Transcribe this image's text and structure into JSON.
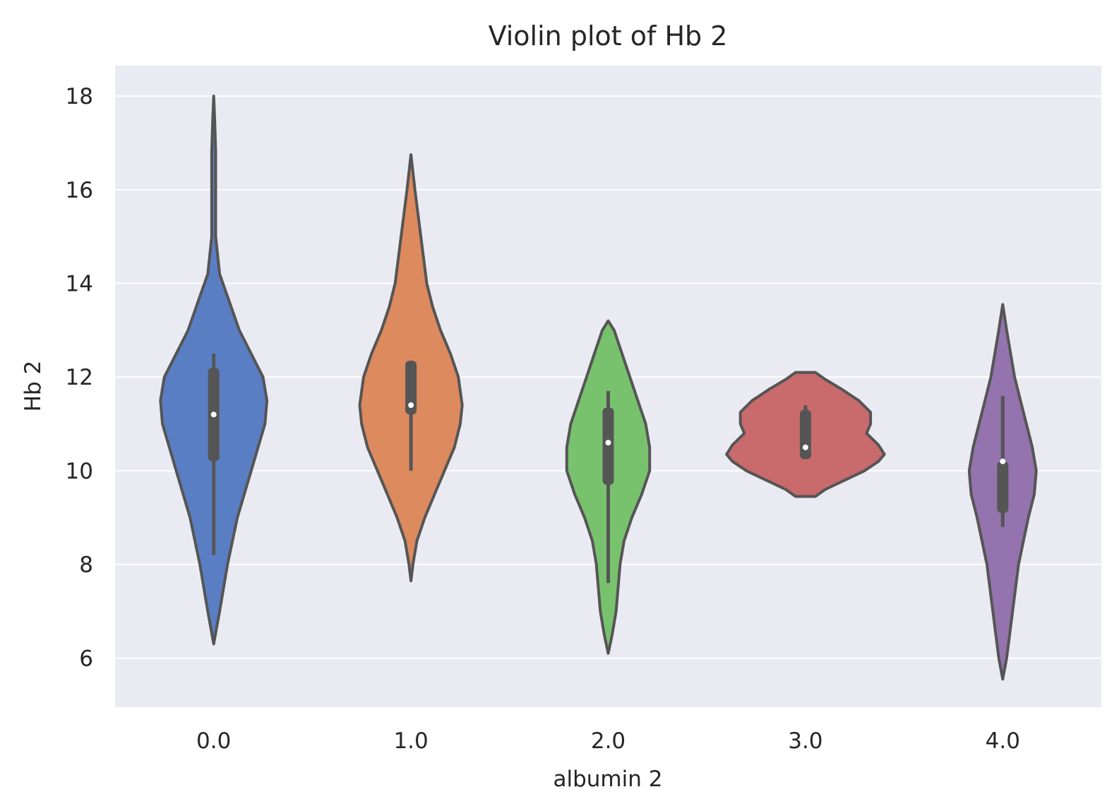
{
  "chart_data": {
    "type": "violin",
    "title": "Violin plot of Hb 2",
    "xlabel": "albumin 2",
    "ylabel": "Hb 2",
    "categories": [
      "0.0",
      "1.0",
      "2.0",
      "3.0",
      "4.0"
    ],
    "yticks": [
      "6",
      "8",
      "10",
      "12",
      "14",
      "16",
      "18"
    ],
    "ylim": [
      4.95,
      18.65
    ],
    "grid": true,
    "background": "#eaeaf2",
    "outline_color": "#555555",
    "violins": [
      {
        "category": "0.0",
        "color": "#5a7ec4",
        "min": 6.3,
        "max": 18.0,
        "median": 11.2,
        "q1": 10.2,
        "q3": 12.2,
        "whisker_low": 8.2,
        "whisker_high": 12.5,
        "profile": [
          [
            6.3,
            0.0
          ],
          [
            7.0,
            0.03
          ],
          [
            8.0,
            0.07
          ],
          [
            9.0,
            0.12
          ],
          [
            10.0,
            0.19
          ],
          [
            11.0,
            0.26
          ],
          [
            11.5,
            0.27
          ],
          [
            12.0,
            0.25
          ],
          [
            12.5,
            0.19
          ],
          [
            13.0,
            0.13
          ],
          [
            13.6,
            0.08
          ],
          [
            14.2,
            0.03
          ],
          [
            15.0,
            0.01
          ],
          [
            16.0,
            0.01
          ],
          [
            16.8,
            0.01
          ],
          [
            17.5,
            0.005
          ],
          [
            18.0,
            0.0
          ]
        ]
      },
      {
        "category": "1.0",
        "color": "#dd8a5e",
        "min": 7.65,
        "max": 16.75,
        "median": 11.4,
        "q1": 11.2,
        "q3": 12.35,
        "whisker_low": 10.0,
        "whisker_high": 12.35,
        "profile": [
          [
            7.65,
            0.0
          ],
          [
            8.0,
            0.01
          ],
          [
            8.5,
            0.03
          ],
          [
            9.0,
            0.07
          ],
          [
            9.5,
            0.12
          ],
          [
            10.0,
            0.17
          ],
          [
            10.5,
            0.22
          ],
          [
            11.0,
            0.25
          ],
          [
            11.4,
            0.26
          ],
          [
            12.0,
            0.24
          ],
          [
            12.5,
            0.2
          ],
          [
            13.0,
            0.15
          ],
          [
            13.5,
            0.11
          ],
          [
            14.0,
            0.08
          ],
          [
            15.0,
            0.05
          ],
          [
            16.0,
            0.02
          ],
          [
            16.75,
            0.0
          ]
        ]
      },
      {
        "category": "2.0",
        "color": "#78c26e",
        "min": 6.1,
        "max": 13.2,
        "median": 10.6,
        "q1": 9.7,
        "q3": 11.35,
        "whisker_low": 7.6,
        "whisker_high": 11.7,
        "profile": [
          [
            6.1,
            0.0
          ],
          [
            6.5,
            0.02
          ],
          [
            7.0,
            0.04
          ],
          [
            7.5,
            0.05
          ],
          [
            8.0,
            0.06
          ],
          [
            8.5,
            0.08
          ],
          [
            9.0,
            0.12
          ],
          [
            9.5,
            0.17
          ],
          [
            10.0,
            0.21
          ],
          [
            10.5,
            0.21
          ],
          [
            11.0,
            0.19
          ],
          [
            11.5,
            0.15
          ],
          [
            12.0,
            0.11
          ],
          [
            12.5,
            0.07
          ],
          [
            13.0,
            0.03
          ],
          [
            13.2,
            0.0
          ]
        ]
      },
      {
        "category": "3.0",
        "color": "#c96a6c",
        "min": 9.45,
        "max": 12.1,
        "median": 10.5,
        "q1": 10.25,
        "q3": 11.3,
        "whisker_low": 10.25,
        "whisker_high": 11.4,
        "profile": [
          [
            9.45,
            0.05
          ],
          [
            9.6,
            0.1
          ],
          [
            9.8,
            0.2
          ],
          [
            10.0,
            0.3
          ],
          [
            10.2,
            0.37
          ],
          [
            10.35,
            0.4
          ],
          [
            10.55,
            0.37
          ],
          [
            10.8,
            0.31
          ],
          [
            11.0,
            0.33
          ],
          [
            11.25,
            0.33
          ],
          [
            11.5,
            0.27
          ],
          [
            11.75,
            0.18
          ],
          [
            11.95,
            0.1
          ],
          [
            12.1,
            0.05
          ]
        ]
      },
      {
        "category": "4.0",
        "color": "#9473ae",
        "min": 5.55,
        "max": 13.55,
        "median": 10.2,
        "q1": 9.1,
        "q3": 10.2,
        "whisker_low": 8.8,
        "whisker_high": 11.6,
        "profile": [
          [
            5.55,
            0.0
          ],
          [
            6.0,
            0.02
          ],
          [
            7.0,
            0.05
          ],
          [
            8.0,
            0.08
          ],
          [
            9.0,
            0.13
          ],
          [
            9.5,
            0.16
          ],
          [
            10.0,
            0.17
          ],
          [
            10.5,
            0.15
          ],
          [
            11.0,
            0.12
          ],
          [
            11.5,
            0.09
          ],
          [
            12.0,
            0.06
          ],
          [
            12.5,
            0.04
          ],
          [
            13.0,
            0.02
          ],
          [
            13.55,
            0.0
          ]
        ]
      }
    ]
  }
}
